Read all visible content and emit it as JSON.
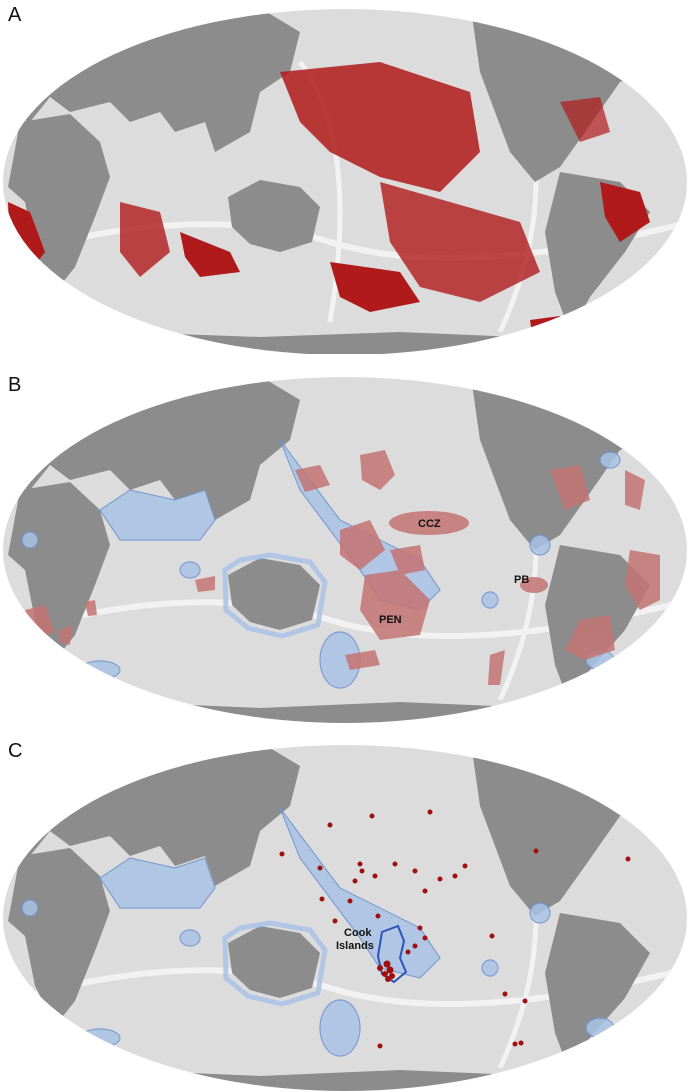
{
  "panels": [
    {
      "letter": "A"
    },
    {
      "letter": "B",
      "labels": {
        "ccz": "CCZ",
        "pen": "PEN",
        "pb": "PB"
      }
    },
    {
      "letter": "C",
      "labels": {
        "cook_line1": "Cook",
        "cook_line2": "Islands"
      }
    }
  ],
  "colors": {
    "ocean": "#dcdcdc",
    "ocean_light": "#eeeeee",
    "land": "#8c8c8c",
    "nodule_red": "#b01a1a",
    "zone_red": "#c47373",
    "eez_blue": "#a9c3e6",
    "eez_outline": "#6f93cf",
    "cook_outline": "#2a55b8",
    "point_red": "#a01010"
  }
}
